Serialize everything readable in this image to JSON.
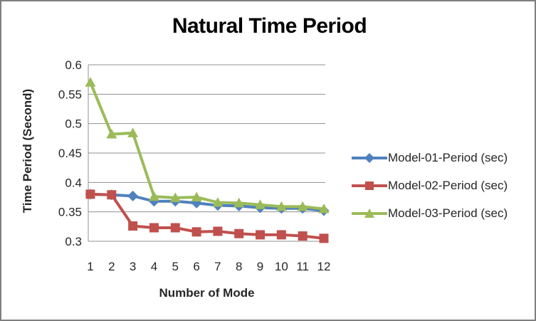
{
  "chart_data": {
    "type": "line",
    "title": "Natural Time Period",
    "xlabel": "Number of Mode",
    "ylabel": "Time Period (Second)",
    "x": [
      1,
      2,
      3,
      4,
      5,
      6,
      7,
      8,
      9,
      10,
      11,
      12
    ],
    "xtick_labels": [
      "1",
      "2",
      "3",
      "4",
      "5",
      "6",
      "7",
      "8",
      "9",
      "10",
      "11",
      "12"
    ],
    "ytick_labels": [
      "0.3",
      "0.35",
      "0.4",
      "0.45",
      "0.5",
      "0.55",
      "0.6"
    ],
    "ylim": [
      0.3,
      0.6
    ],
    "ytick_step": 0.05,
    "grid": true,
    "legend_position": "right",
    "series": [
      {
        "name": "Model-01-Period (sec)",
        "color": "#4F81BD",
        "marker": "diamond",
        "values": [
          0.38,
          0.379,
          0.377,
          0.368,
          0.368,
          0.365,
          0.361,
          0.36,
          0.357,
          0.356,
          0.356,
          0.352
        ]
      },
      {
        "name": "Model-02-Period (sec)",
        "color": "#C0504D",
        "marker": "square",
        "values": [
          0.38,
          0.379,
          0.326,
          0.323,
          0.323,
          0.316,
          0.317,
          0.313,
          0.311,
          0.311,
          0.309,
          0.305
        ]
      },
      {
        "name": "Model-03-Period (sec)",
        "color": "#9BBB59",
        "marker": "triangle",
        "values": [
          0.57,
          0.482,
          0.484,
          0.376,
          0.374,
          0.375,
          0.366,
          0.365,
          0.362,
          0.359,
          0.359,
          0.355
        ]
      }
    ]
  },
  "colors": {
    "grid": "#909090",
    "axis_text": "#262626",
    "title_text": "#000000",
    "border": "#7F7F7F",
    "background": "#FFFFFF"
  }
}
